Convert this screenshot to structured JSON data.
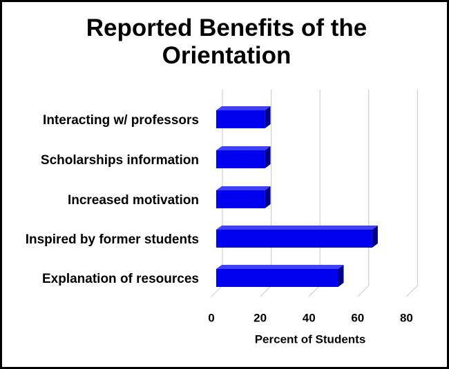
{
  "chart_data": {
    "type": "bar3d",
    "orientation": "horizontal",
    "title": "Reported Benefits of the Orientation",
    "categories": [
      "Interacting w/ professors",
      "Scholarships information",
      "Increased motivation",
      "Inspired by former students",
      "Explanation of resources"
    ],
    "values": [
      20,
      20,
      20,
      64,
      50
    ],
    "color": "#0000ee",
    "xlabel": "Percent of Students",
    "xlim": [
      0,
      80
    ],
    "xticks": [
      0,
      20,
      40,
      60,
      80
    ],
    "grid": true
  }
}
